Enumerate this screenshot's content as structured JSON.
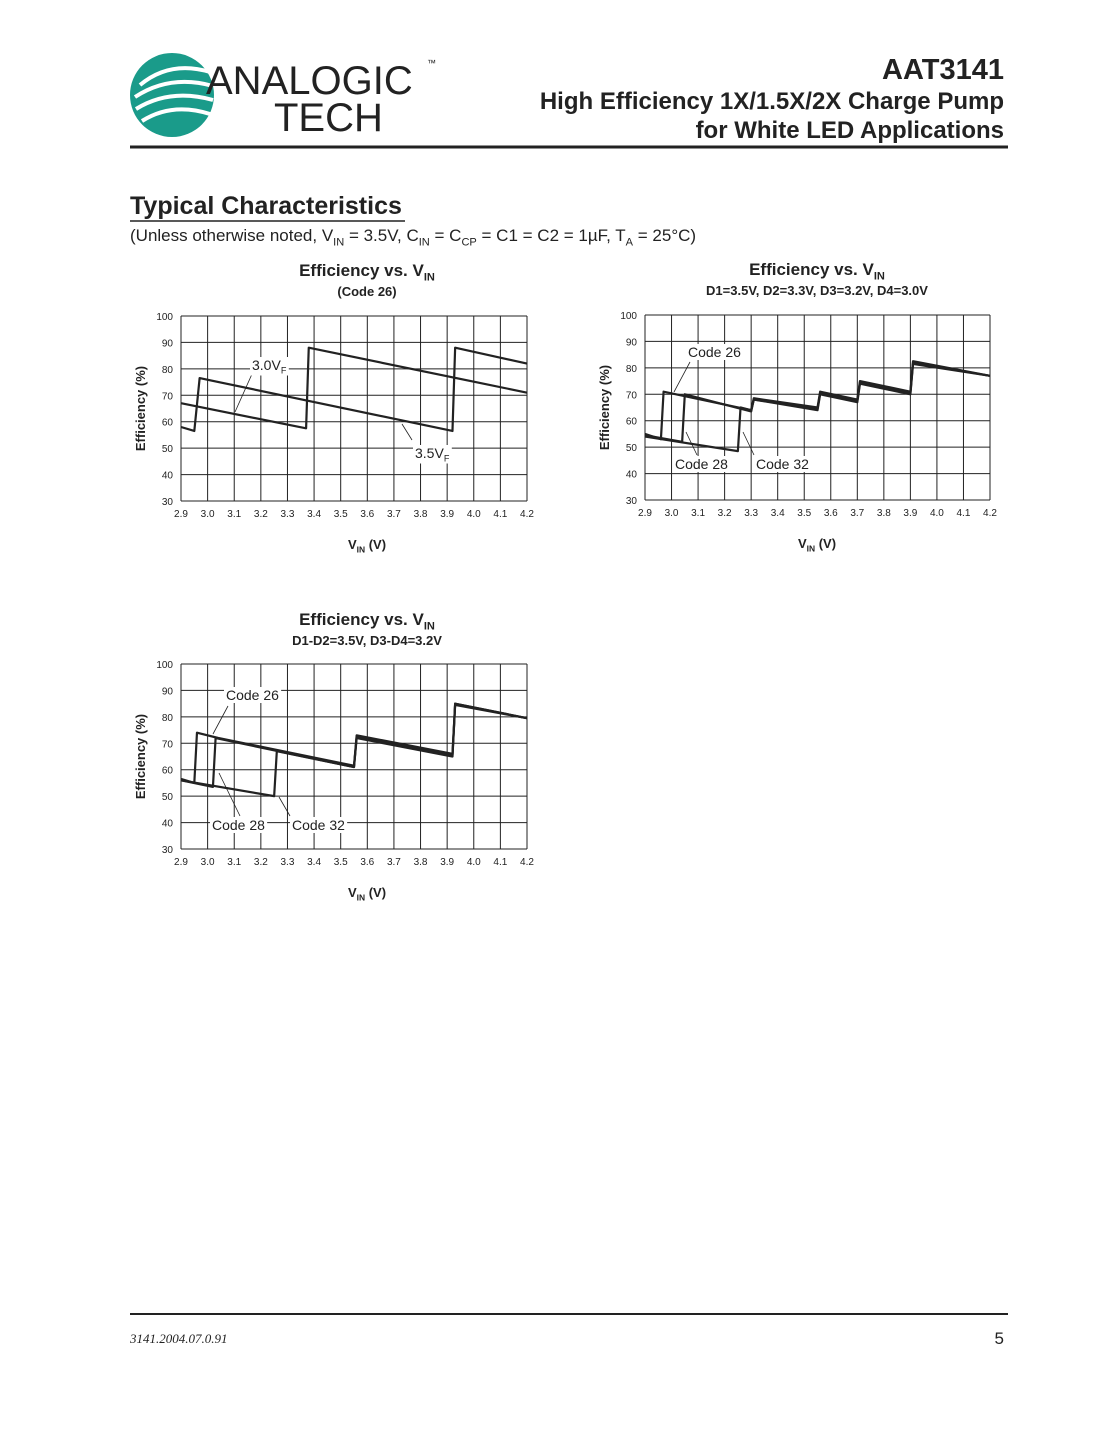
{
  "header": {
    "logo_word": "ANALOGIC",
    "logo_tm": "™",
    "logo_sub": "TECH",
    "part": "AAT3141",
    "title_lines": [
      "High Efficiency 1X/1.5X/2X Charge Pump",
      "for White LED Applications"
    ]
  },
  "section": {
    "title": "Typical Characteristics",
    "conditions": [
      "(Unless otherwise noted, V",
      "IN",
      " = 3.5V, C",
      "IN",
      " = C",
      "CP",
      " = C1 = C2 = 1µF, T",
      "A",
      " = 25°C)"
    ]
  },
  "chart_data": [
    {
      "type": "line",
      "title": [
        "Efficiency vs. V",
        "IN"
      ],
      "subtitle": "(Code 26)",
      "xlabel": [
        "V",
        "IN",
        " (V)"
      ],
      "ylabel": "Efficiency (%)",
      "xlim": [
        2.9,
        4.2
      ],
      "ylim": [
        30,
        100
      ],
      "grid": true,
      "xticks": [
        2.9,
        {
          "value": 3.0,
          "label": "3.0"
        },
        3.1,
        3.2,
        3.3,
        3.4,
        3.5,
        3.6,
        3.7,
        3.8,
        3.9,
        {
          "value": 4.0,
          "label": "4.0"
        },
        4.1,
        4.2
      ],
      "yticks": [
        30,
        40,
        50,
        60,
        70,
        80,
        90,
        100
      ],
      "annotations": [
        [
          "3.0V",
          "F"
        ],
        [
          "3.5V",
          "F"
        ]
      ],
      "series": [
        {
          "color": "#222222",
          "x": [
            2.9,
            3.37,
            3.38,
            4.2
          ],
          "values": [
            67,
            57.5,
            88,
            71
          ]
        },
        {
          "color": "#222222",
          "x": [
            2.9,
            2.95,
            2.97,
            3.92,
            3.93,
            4.2
          ],
          "values": [
            58,
            56.5,
            76.5,
            56.5,
            88,
            82
          ]
        }
      ]
    },
    {
      "type": "line",
      "title": [
        "Efficiency vs. V",
        "IN"
      ],
      "subtitle": "D1=3.5V, D2=3.3V, D3=3.2V, D4=3.0V",
      "xlabel": [
        "V",
        "IN",
        " (V)"
      ],
      "ylabel": "Efficiency (%)",
      "xlim": [
        2.9,
        4.2
      ],
      "ylim": [
        30,
        100
      ],
      "grid": true,
      "xticks": [
        2.9,
        {
          "value": 3.0,
          "label": "3.0"
        },
        3.1,
        3.2,
        3.3,
        3.4,
        3.5,
        3.6,
        3.7,
        3.8,
        3.9,
        {
          "value": 4.0,
          "label": "4.0"
        },
        4.1,
        4.2
      ],
      "yticks": [
        30,
        40,
        50,
        60,
        70,
        80,
        90,
        100
      ],
      "annotations": [
        [
          "Code 26"
        ],
        [
          "Code 28"
        ],
        [
          "Code 32"
        ]
      ],
      "series": [
        {
          "color": "#222222",
          "x": [
            2.9,
            2.96,
            2.97,
            3.3,
            3.31,
            3.55,
            3.56,
            3.7,
            3.71,
            3.9,
            3.91,
            4.2
          ],
          "values": [
            55,
            53,
            71,
            64,
            68.5,
            65,
            71,
            68,
            75,
            71,
            82.5,
            77
          ]
        },
        {
          "color": "#222222",
          "x": [
            2.9,
            3.04,
            3.05,
            3.3,
            3.31,
            3.55,
            3.56,
            3.7,
            3.71,
            3.9,
            3.91,
            4.2
          ],
          "values": [
            54.5,
            52,
            70,
            63.5,
            68,
            64.5,
            70.5,
            67.5,
            74.5,
            70.5,
            82,
            77
          ]
        },
        {
          "color": "#222222",
          "x": [
            2.9,
            3.25,
            3.26,
            3.3,
            3.31,
            3.55,
            3.56,
            3.7,
            3.71,
            3.9,
            3.91,
            4.2
          ],
          "values": [
            54,
            48.5,
            65,
            64,
            68,
            64,
            70,
            67,
            74,
            70,
            81.5,
            77
          ]
        }
      ]
    },
    {
      "type": "line",
      "title": [
        "Efficiency vs. V",
        "IN"
      ],
      "subtitle": "D1-D2=3.5V, D3-D4=3.2V",
      "xlabel": [
        "V",
        "IN",
        " (V)"
      ],
      "ylabel": "Efficiency (%)",
      "xlim": [
        2.9,
        4.2
      ],
      "ylim": [
        30,
        100
      ],
      "grid": true,
      "xticks": [
        2.9,
        {
          "value": 3.0,
          "label": "3.0"
        },
        3.1,
        3.2,
        3.3,
        3.4,
        3.5,
        3.6,
        3.7,
        3.8,
        3.9,
        {
          "value": 4.0,
          "label": "4.0"
        },
        4.1,
        4.2
      ],
      "yticks": [
        30,
        40,
        50,
        60,
        70,
        80,
        90,
        100
      ],
      "annotations": [
        [
          "Code 26"
        ],
        [
          "Code 28"
        ],
        [
          "Code 32"
        ]
      ],
      "series": [
        {
          "color": "#222222",
          "x": [
            2.9,
            2.95,
            2.96,
            3.04,
            3.55,
            3.56,
            3.92,
            3.93,
            4.2
          ],
          "values": [
            56.5,
            55,
            74,
            72,
            61.5,
            73,
            66,
            85,
            79.5
          ]
        },
        {
          "color": "#222222",
          "x": [
            2.9,
            3.02,
            3.03,
            3.55,
            3.56,
            3.92,
            3.93,
            4.2
          ],
          "values": [
            56,
            53.5,
            72,
            61,
            72.5,
            65.5,
            85,
            79.5
          ]
        },
        {
          "color": "#222222",
          "x": [
            2.9,
            3.25,
            3.26,
            3.55,
            3.56,
            3.92,
            3.93,
            4.2
          ],
          "values": [
            56,
            50,
            67,
            61,
            72,
            65,
            84.5,
            79.5
          ]
        }
      ]
    }
  ],
  "footer": {
    "doc_id": "3141.2004.07.0.91",
    "page": "5"
  }
}
